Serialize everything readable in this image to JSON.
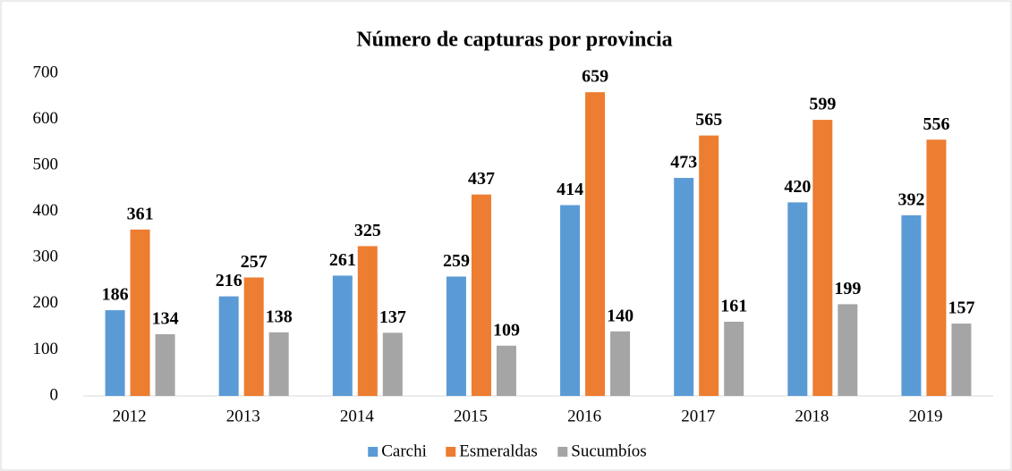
{
  "chart_data": {
    "type": "bar",
    "title": "Número de capturas  por provincia",
    "categories": [
      "2012",
      "2013",
      "2014",
      "2015",
      "2016",
      "2017",
      "2018",
      "2019"
    ],
    "series": [
      {
        "name": "Carchi",
        "color": "#5b9bd5",
        "values": [
          186,
          216,
          261,
          259,
          414,
          473,
          420,
          392
        ]
      },
      {
        "name": "Esmeraldas",
        "color": "#ed7d31",
        "values": [
          361,
          257,
          325,
          437,
          659,
          565,
          599,
          556
        ]
      },
      {
        "name": "Sucumbíos",
        "color": "#a5a5a5",
        "values": [
          134,
          138,
          137,
          109,
          140,
          161,
          199,
          157
        ]
      }
    ],
    "ylim": [
      0,
      700
    ],
    "yticks": [
      0,
      100,
      200,
      300,
      400,
      500,
      600,
      700
    ],
    "grid": false,
    "legend": "bottom"
  }
}
